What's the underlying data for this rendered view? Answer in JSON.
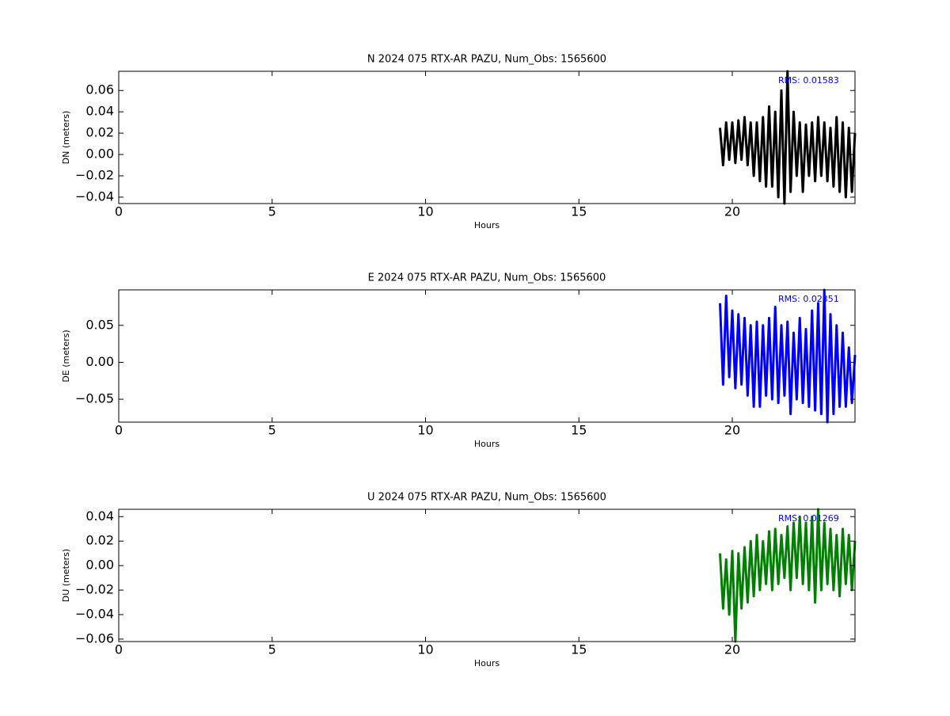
{
  "chart_data": [
    {
      "type": "line",
      "title": "N 2024 075 RTX-AR  PAZU, Num_Obs: 1565600",
      "xlabel": "Hours",
      "ylabel": "DN (meters)",
      "annotation": "RMS:  0.01583",
      "annotation_color": "#0000ff",
      "color": "#000000",
      "xlim": [
        0,
        24
      ],
      "xticks": [
        0,
        5,
        10,
        15,
        20
      ],
      "ylim": [
        -0.046,
        0.078
      ],
      "yticks": [
        {
          "value": -0.04,
          "label": "−0.04"
        },
        {
          "value": -0.02,
          "label": "−0.02"
        },
        {
          "value": 0,
          "label": "0.00"
        },
        0.02,
        0.04,
        0.06
      ],
      "x": [
        19.6,
        19.7,
        19.8,
        19.9,
        20.0,
        20.1,
        20.2,
        20.3,
        20.4,
        20.5,
        20.6,
        20.7,
        20.8,
        20.9,
        21.0,
        21.1,
        21.2,
        21.3,
        21.4,
        21.5,
        21.6,
        21.7,
        21.8,
        21.9,
        22.0,
        22.1,
        22.2,
        22.3,
        22.4,
        22.5,
        22.6,
        22.7,
        22.8,
        22.9,
        23.0,
        23.1,
        23.2,
        23.3,
        23.4,
        23.5,
        23.6,
        23.7,
        23.8,
        23.9,
        24.0
      ],
      "values": [
        0.025,
        -0.01,
        0.03,
        -0.005,
        0.03,
        -0.008,
        0.032,
        -0.005,
        0.035,
        -0.01,
        0.03,
        -0.02,
        0.03,
        -0.025,
        0.035,
        -0.03,
        0.045,
        -0.03,
        0.04,
        -0.04,
        0.06,
        -0.046,
        0.078,
        -0.035,
        0.04,
        -0.02,
        0.03,
        -0.035,
        0.028,
        -0.02,
        0.03,
        -0.025,
        0.035,
        -0.02,
        0.03,
        -0.025,
        0.025,
        -0.03,
        0.035,
        -0.035,
        0.03,
        -0.04,
        0.025,
        -0.035,
        0.02
      ]
    },
    {
      "type": "line",
      "title": "E 2024 075 RTX-AR  PAZU, Num_Obs: 1565600",
      "xlabel": "Hours",
      "ylabel": "DE (meters)",
      "annotation": "RMS:  0.02351",
      "annotation_color": "#0000ff",
      "color": "#0000ff",
      "xlim": [
        0,
        24
      ],
      "xticks": [
        0,
        5,
        10,
        15,
        20
      ],
      "ylim": [
        -0.081,
        0.098
      ],
      "yticks": [
        {
          "value": -0.05,
          "label": "−0.05"
        },
        {
          "value": 0,
          "label": "0.00"
        },
        0.05
      ],
      "x": [
        19.6,
        19.7,
        19.8,
        19.9,
        20.0,
        20.1,
        20.2,
        20.3,
        20.4,
        20.5,
        20.6,
        20.7,
        20.8,
        20.9,
        21.0,
        21.1,
        21.2,
        21.3,
        21.4,
        21.5,
        21.6,
        21.7,
        21.8,
        21.9,
        22.0,
        22.1,
        22.2,
        22.3,
        22.4,
        22.5,
        22.6,
        22.7,
        22.8,
        22.9,
        23.0,
        23.1,
        23.2,
        23.3,
        23.4,
        23.5,
        23.6,
        23.7,
        23.8,
        23.9,
        24.0
      ],
      "values": [
        0.08,
        -0.03,
        0.09,
        -0.02,
        0.07,
        -0.035,
        0.065,
        -0.03,
        0.06,
        -0.045,
        0.05,
        -0.06,
        0.055,
        -0.06,
        0.05,
        -0.045,
        0.06,
        -0.05,
        0.075,
        -0.055,
        0.05,
        -0.045,
        0.055,
        -0.07,
        0.04,
        -0.05,
        0.06,
        -0.055,
        0.045,
        -0.06,
        0.07,
        -0.065,
        0.08,
        -0.07,
        0.098,
        -0.081,
        0.065,
        -0.07,
        0.05,
        -0.06,
        0.04,
        -0.06,
        0.02,
        -0.055,
        0.01
      ]
    },
    {
      "type": "line",
      "title": "U 2024 075 RTX-AR  PAZU, Num_Obs: 1565600",
      "xlabel": "Hours",
      "ylabel": "DU (meters)",
      "annotation": "RMS:  0.01269",
      "annotation_color": "#0000ff",
      "color": "#008000",
      "xlim": [
        0,
        24
      ],
      "xticks": [
        0,
        5,
        10,
        15,
        20
      ],
      "ylim": [
        -0.062,
        0.046
      ],
      "yticks": [
        {
          "value": -0.06,
          "label": "−0.06"
        },
        {
          "value": -0.04,
          "label": "−0.04"
        },
        {
          "value": -0.02,
          "label": "−0.02"
        },
        {
          "value": 0,
          "label": "0.00"
        },
        0.02,
        0.04
      ],
      "x": [
        19.6,
        19.7,
        19.8,
        19.9,
        20.0,
        20.1,
        20.2,
        20.3,
        20.4,
        20.5,
        20.6,
        20.7,
        20.8,
        20.9,
        21.0,
        21.1,
        21.2,
        21.3,
        21.4,
        21.5,
        21.6,
        21.7,
        21.8,
        21.9,
        22.0,
        22.1,
        22.2,
        22.3,
        22.4,
        22.5,
        22.6,
        22.7,
        22.8,
        22.9,
        23.0,
        23.1,
        23.2,
        23.3,
        23.4,
        23.5,
        23.6,
        23.7,
        23.8,
        23.9,
        24.0
      ],
      "values": [
        0.01,
        -0.035,
        0.005,
        -0.04,
        0.012,
        -0.062,
        0.01,
        -0.035,
        0.015,
        -0.03,
        0.02,
        -0.025,
        0.025,
        -0.02,
        0.02,
        -0.015,
        0.028,
        -0.02,
        0.03,
        -0.015,
        0.025,
        -0.01,
        0.032,
        -0.02,
        0.035,
        -0.01,
        0.04,
        -0.015,
        0.035,
        -0.02,
        0.04,
        -0.03,
        0.046,
        -0.02,
        0.035,
        -0.015,
        0.03,
        -0.02,
        0.025,
        -0.025,
        0.03,
        -0.015,
        0.025,
        -0.02,
        0.02
      ]
    }
  ]
}
